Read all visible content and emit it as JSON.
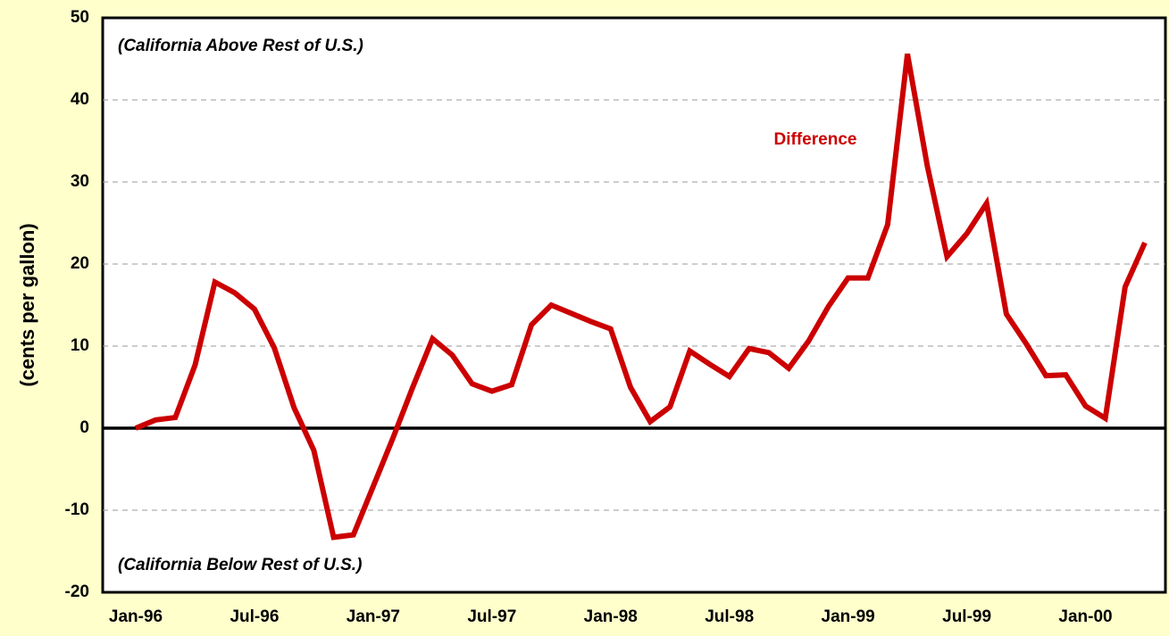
{
  "chart_data": {
    "type": "line",
    "y_label": "(cents per gallon)",
    "annotations": [
      "(California Above Rest of U.S.)",
      "(California Below Rest of U.S.)"
    ],
    "categories": [
      "Jan-96",
      null,
      null,
      null,
      null,
      null,
      "Jul-96",
      null,
      null,
      null,
      null,
      null,
      "Jan-97",
      null,
      null,
      null,
      null,
      null,
      "Jul-97",
      null,
      null,
      null,
      null,
      null,
      "Jan-98",
      null,
      null,
      null,
      null,
      null,
      "Jul-98",
      null,
      null,
      null,
      null,
      null,
      "Jan-99",
      null,
      null,
      null,
      null,
      null,
      "Jul-99",
      null,
      null,
      null,
      null,
      null,
      "Jan-00",
      null,
      null,
      null
    ],
    "series": [
      {
        "name": "Difference",
        "color": "#cc0000",
        "values": [
          0,
          1.0,
          1.3,
          7.7,
          17.8,
          16.5,
          14.5,
          9.8,
          2.5,
          -2.7,
          -13.3,
          -13.0,
          -7.1,
          -1.2,
          5.0,
          10.9,
          8.9,
          5.4,
          4.5,
          5.3,
          12.6,
          15.0,
          14.0,
          13.0,
          12.1,
          5.0,
          0.8,
          2.6,
          9.4,
          7.8,
          6.3,
          9.7,
          9.2,
          7.3,
          10.6,
          14.8,
          18.3,
          18.3,
          24.8,
          45.6,
          32.0,
          20.9,
          23.7,
          27.4,
          13.9,
          10.3,
          6.4,
          6.5,
          2.7,
          1.2,
          17.2,
          22.6
        ]
      }
    ],
    "ylim": [
      -20,
      50
    ],
    "yticks": [
      -20,
      -10,
      0,
      10,
      20,
      30,
      40,
      50
    ],
    "grid": true
  }
}
